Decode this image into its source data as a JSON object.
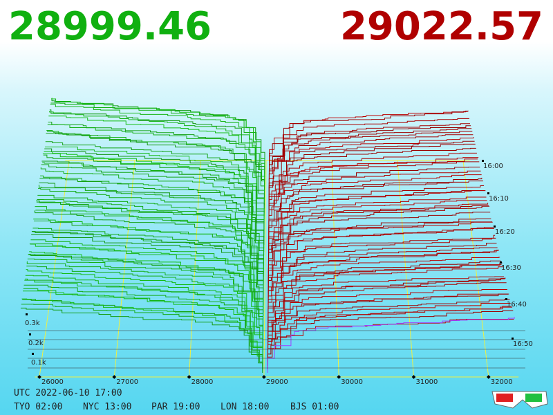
{
  "header": {
    "bid": "28999.46",
    "ask": "29022.57"
  },
  "price_axis": [
    "26000",
    "27000",
    "28000",
    "29000",
    "30000",
    "31000",
    "32000"
  ],
  "depth_axis": [
    "0.1k",
    "0.2k",
    "0.3k"
  ],
  "time_axis": [
    "16:00",
    "16:10",
    "16:20",
    "16:30",
    "16:40",
    "16:50"
  ],
  "footer": {
    "utc": "UTC 2022-06-10 17:00",
    "cities": [
      "TYO 02:00",
      "NYC 13:00",
      "PAR 19:00",
      "LON 18:00",
      "BJS 01:00"
    ]
  }
}
